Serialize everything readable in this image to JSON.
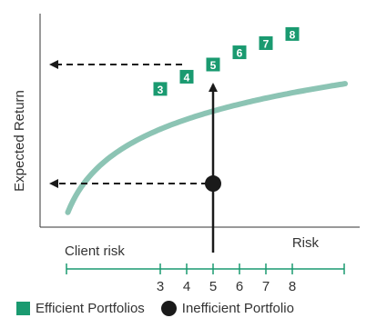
{
  "chart_data": {
    "type": "line",
    "title": "",
    "xlabel": "Risk",
    "ylabel": "Expected Return",
    "client_risk_label": "Client risk",
    "grid": false,
    "legend_position": "bottom-left",
    "risk_scale_ticks": [
      "3",
      "4",
      "5",
      "6",
      "7",
      "8"
    ],
    "series": [
      {
        "name": "Efficient Portfolios",
        "color": "#8CC4B4",
        "marker_color": "#1A9A70",
        "points": [
          {
            "label": "3",
            "risk": 3,
            "return": 0.67
          },
          {
            "label": "4",
            "risk": 4,
            "return": 0.71
          },
          {
            "label": "5",
            "risk": 5,
            "return": 0.75
          },
          {
            "label": "6",
            "risk": 6,
            "return": 0.79
          },
          {
            "label": "7",
            "risk": 7,
            "return": 0.82
          },
          {
            "label": "8",
            "risk": 8,
            "return": 0.85
          }
        ]
      },
      {
        "name": "Inefficient Portfolio",
        "color": "#1A1A1A",
        "points": [
          {
            "risk": 5,
            "return": 0.36
          }
        ]
      }
    ],
    "client_risk": 5
  },
  "legend": {
    "efficient_label": "Efficient Portfolios",
    "inefficient_label": "Inefficient Portfolio"
  }
}
